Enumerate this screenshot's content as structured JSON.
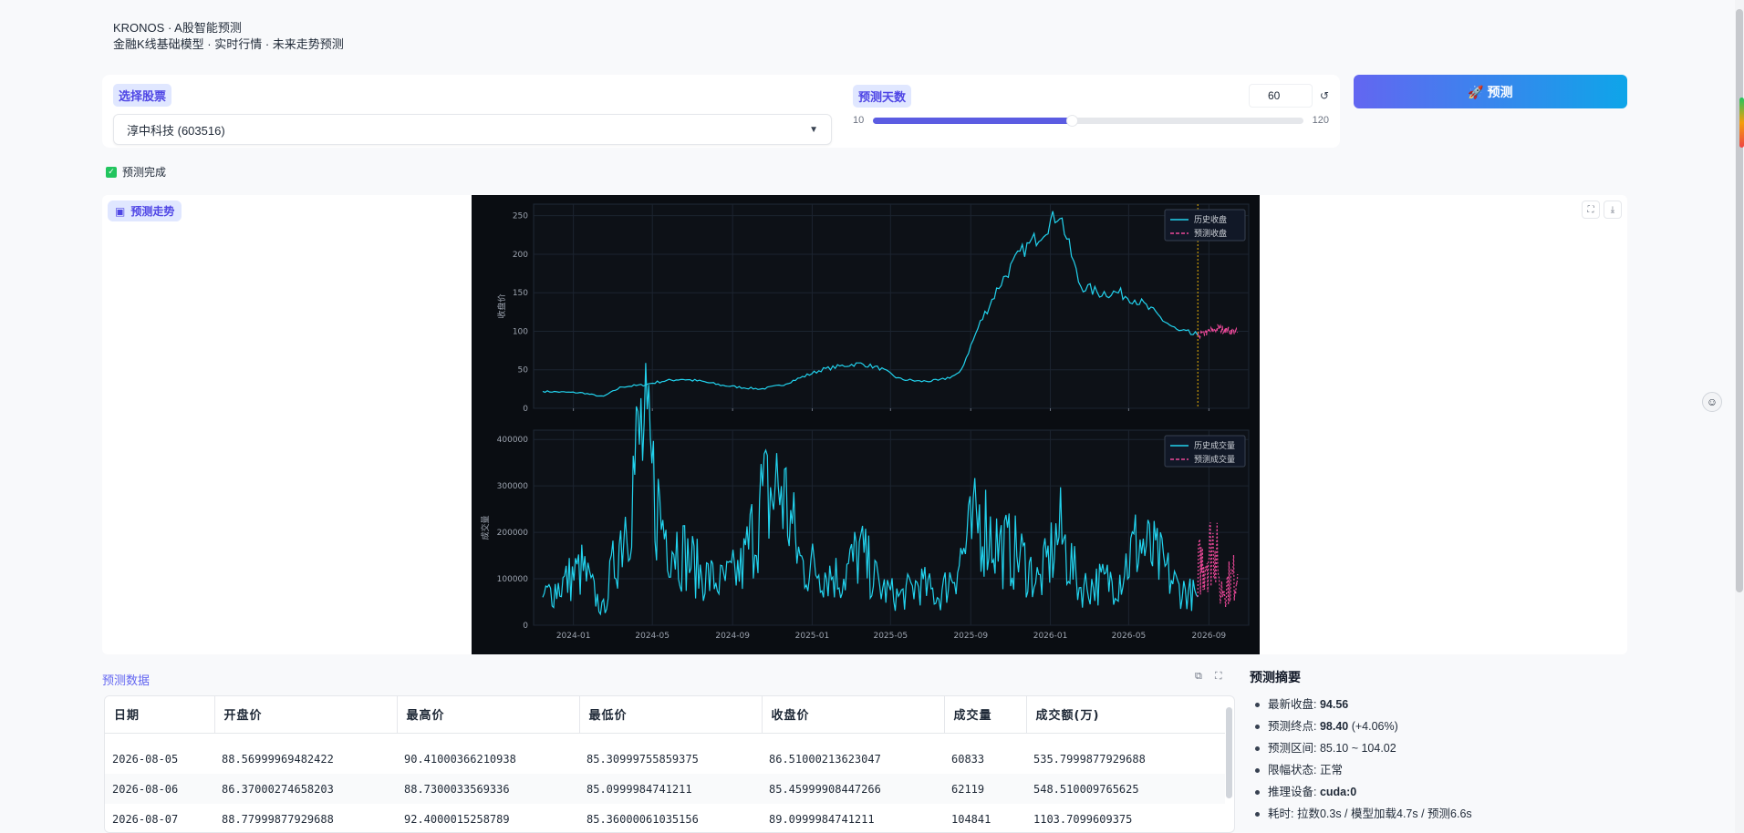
{
  "header": {
    "title": "KRONOS · A股智能预测",
    "subtitle": "金融K线基础模型 · 实时行情 · 未来走势预测"
  },
  "controls": {
    "stock_label": "选择股票",
    "stock_value": "淳中科技 (603516)",
    "days_label": "预测天数",
    "days_value": "60",
    "slider_min": "10",
    "slider_max": "120",
    "slider_fraction": 0.4545,
    "reset_icon": "reset-icon"
  },
  "predict_button": {
    "label": "🚀 预测"
  },
  "status": {
    "text": "预测完成"
  },
  "plot": {
    "label": "预测走势"
  },
  "chart_data": [
    {
      "type": "line",
      "title": "",
      "xlabel": "",
      "ylabel": "收盘价",
      "ylim": [
        0,
        265
      ],
      "yticks": [
        0,
        50,
        100,
        150,
        200,
        250
      ],
      "x_ticks": [
        "2024-01",
        "2024-05",
        "2024-09",
        "2025-01",
        "2025-05",
        "2025-09",
        "2026-01",
        "2026-05",
        "2026-09"
      ],
      "legend": "top-right",
      "series": [
        {
          "name": "历史收盘",
          "x": [
            "2023-11",
            "2024-01",
            "2024-02",
            "2024-03",
            "2024-04",
            "2024-05",
            "2024-06",
            "2024-07",
            "2024-08",
            "2024-09",
            "2024-10",
            "2024-11",
            "2024-12",
            "2025-01",
            "2025-02",
            "2025-03",
            "2025-04",
            "2025-05",
            "2025-06",
            "2025-07",
            "2025-08",
            "2025-09",
            "2025-10",
            "2025-11",
            "2025-12",
            "2026-01",
            "2026-02",
            "2026-03",
            "2026-04",
            "2026-05",
            "2026-06",
            "2026-07",
            "2026-08"
          ],
          "values": [
            22,
            20,
            15,
            28,
            30,
            35,
            38,
            35,
            30,
            27,
            25,
            30,
            40,
            50,
            55,
            58,
            52,
            38,
            35,
            36,
            45,
            110,
            160,
            200,
            225,
            255,
            160,
            150,
            150,
            140,
            120,
            100,
            94.56
          ]
        },
        {
          "name": "预测收盘",
          "x": [
            "2026-08",
            "2026-09",
            "2026-10"
          ],
          "values": [
            94.56,
            104,
            98.4
          ]
        }
      ]
    },
    {
      "type": "line",
      "title": "",
      "xlabel": "",
      "ylabel": "成交量",
      "ylim": [
        0,
        420000
      ],
      "yticks": [
        0,
        100000,
        200000,
        300000,
        400000
      ],
      "x_ticks": [
        "2024-01",
        "2024-05",
        "2024-09",
        "2025-01",
        "2025-05",
        "2025-09",
        "2026-01",
        "2026-05",
        "2026-09"
      ],
      "legend": "top-right",
      "series": [
        {
          "name": "历史成交量",
          "x": [
            "2023-11",
            "2024-01",
            "2024-02",
            "2024-03",
            "2024-04",
            "2024-05",
            "2024-06",
            "2024-07",
            "2024-08",
            "2024-09",
            "2024-10",
            "2024-11",
            "2024-12",
            "2025-01",
            "2025-02",
            "2025-03",
            "2025-04",
            "2025-05",
            "2025-06",
            "2025-07",
            "2025-08",
            "2025-09",
            "2025-10",
            "2025-11",
            "2025-12",
            "2026-01",
            "2026-02",
            "2026-03",
            "2026-04",
            "2026-05",
            "2026-06",
            "2026-07",
            "2026-08"
          ],
          "values": [
            60000,
            120000,
            30000,
            200000,
            410000,
            220000,
            160000,
            110000,
            90000,
            120000,
            260000,
            300000,
            130000,
            120000,
            100000,
            160000,
            80000,
            60000,
            90000,
            60000,
            140000,
            230000,
            170000,
            150000,
            90000,
            200000,
            80000,
            90000,
            100000,
            180000,
            140000,
            80000,
            60833
          ]
        },
        {
          "name": "预测成交量",
          "x": [
            "2026-08",
            "2026-08",
            "2026-09",
            "2026-09",
            "2026-10"
          ],
          "values": [
            60833,
            120000,
            190000,
            70000,
            110000
          ]
        }
      ]
    }
  ],
  "data_table": {
    "title": "预测数据",
    "columns": [
      "日期",
      "开盘价",
      "最高价",
      "最低价",
      "收盘价",
      "成交量",
      "成交额(万)"
    ],
    "rows": [
      [
        "2026-08-05",
        "88.56999969482422",
        "90.41000366210938",
        "85.30999755859375",
        "86.51000213623047",
        "60833",
        "535.7999877929688"
      ],
      [
        "2026-08-06",
        "86.37000274658203",
        "88.7300033569336",
        "85.0999984741211",
        "85.45999908447266",
        "62119",
        "548.510009765625"
      ],
      [
        "2026-08-07",
        "88.77999877929688",
        "92.4000015258789",
        "85.36000061035156",
        "89.0999984741211",
        "104841",
        "1103.7099609375"
      ]
    ]
  },
  "summary": {
    "title": "预测摘要",
    "latest_close_label": "最新收盘: ",
    "latest_close_value": "94.56",
    "end_label": "预测终点: ",
    "end_value": "98.40",
    "end_change": " (+4.06%)",
    "range_label": "预测区间: ",
    "range_value": "85.10 ~ 104.02",
    "limit_label": "限幅状态: ",
    "limit_value": "正常",
    "device_label": "推理设备: ",
    "device_value": "cuda:0",
    "time_label": "耗时: ",
    "time_value": "拉数0.3s / 模型加载4.7s / 预测6.6s"
  },
  "colors": {
    "accent": "#6366f1",
    "chart_bg": "#0d1117",
    "history_line": "#22d3ee",
    "forecast_line": "#ec4899",
    "cutoff_line": "#eab308"
  }
}
